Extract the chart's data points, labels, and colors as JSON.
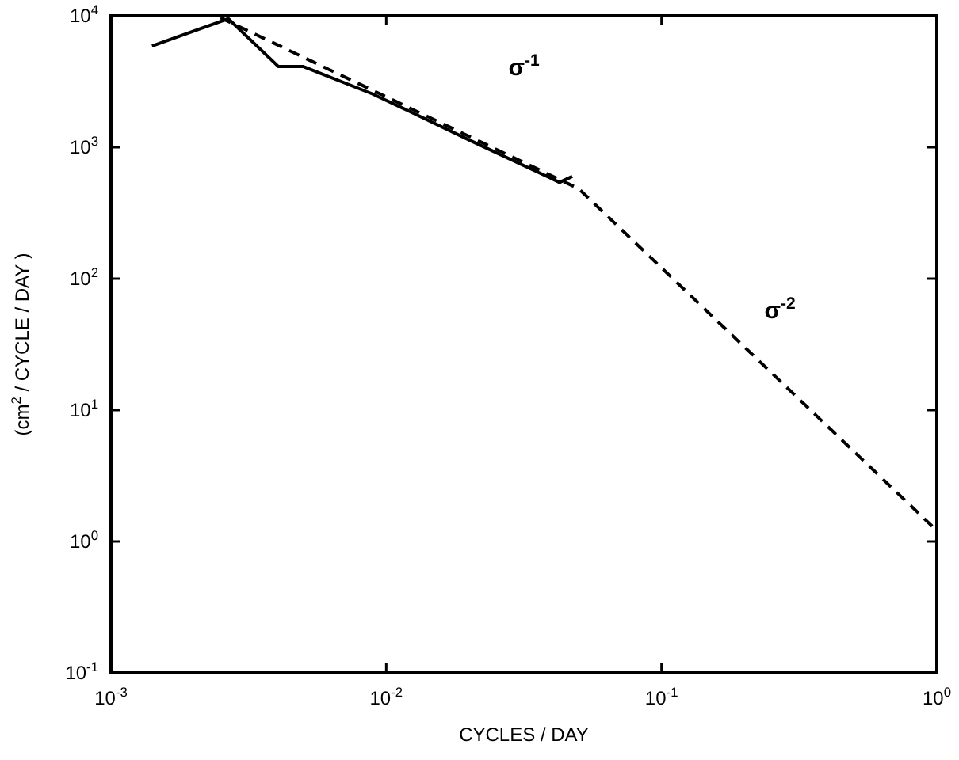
{
  "chart_data": {
    "type": "line",
    "xlabel": "CYCLES / DAY",
    "ylabel": "(cm$^{2}$ / CYCLE / DAY )",
    "log": "xy",
    "grid": false,
    "xlim": [
      0.001,
      1
    ],
    "ylim": [
      0.1,
      10000
    ],
    "xticks": [
      {
        "value": 0.001,
        "label": "10$^{-3}$"
      },
      {
        "value": 0.01,
        "label": "10$^{-2}$"
      },
      {
        "value": 0.1,
        "label": "10$^{-1}$"
      },
      {
        "value": 1,
        "label": "10$^{0}$"
      }
    ],
    "yticks": [
      {
        "value": 0.1,
        "label": "10$^{-1}$"
      },
      {
        "value": 1,
        "label": "10$^{0}$"
      },
      {
        "value": 10,
        "label": "10$^{1}$"
      },
      {
        "value": 100,
        "label": "10$^{2}$"
      },
      {
        "value": 1000,
        "label": "10$^{3}$"
      },
      {
        "value": 10000,
        "label": "10$^{4}$"
      }
    ],
    "series": [
      {
        "color": "#000000",
        "line_style": "solid",
        "x": [
          0.00141,
          0.00267,
          0.00406,
          0.005,
          0.0089,
          0.012,
          0.0203,
          0.039,
          0.0426,
          0.0474
        ],
        "values": [
          5900,
          9500,
          4110,
          4110,
          2550,
          1900,
          1120,
          590,
          540,
          600
        ]
      },
      {
        "color": "#000000",
        "line_style": "dashed",
        "x": [
          0.0025,
          0.05,
          1
        ],
        "values": [
          9680,
          484,
          1.21
        ]
      }
    ],
    "annotations": [
      "σ$^{-1}$",
      "σ$^{-2}$"
    ]
  }
}
